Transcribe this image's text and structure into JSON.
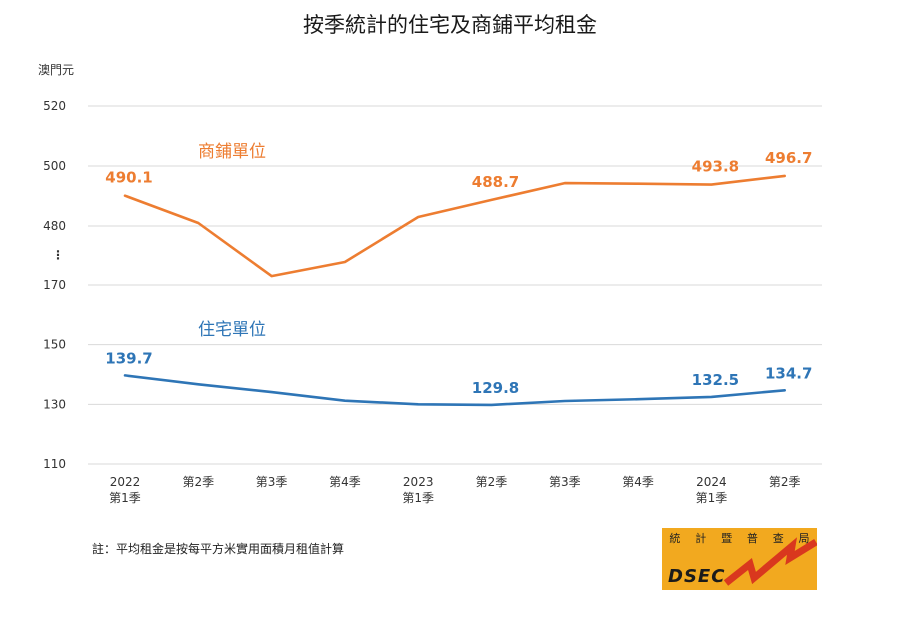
{
  "chart_data": {
    "type": "line",
    "title": "按季統計的住宅及商鋪平均租金",
    "ylabel": "澳門元",
    "y_ticks_upper": [
      "520",
      "500",
      "480"
    ],
    "y_ticks_lower": [
      "170",
      "150",
      "130",
      "110"
    ],
    "axis_break_marker": "⋮",
    "ylim_upper": [
      480,
      520
    ],
    "ylim_lower": [
      110,
      170
    ],
    "categories": [
      [
        "2022",
        "第1季"
      ],
      [
        "",
        "第2季"
      ],
      [
        "",
        "第3季"
      ],
      [
        "",
        "第4季"
      ],
      [
        "2023",
        "第1季"
      ],
      [
        "",
        "第2季"
      ],
      [
        "",
        "第3季"
      ],
      [
        "",
        "第4季"
      ],
      [
        "2024",
        "第1季"
      ],
      [
        "",
        "第2季"
      ]
    ],
    "series": [
      {
        "name": "商鋪單位",
        "color": "#ed7d31",
        "values": [
          490.1,
          481.0,
          463.3,
          468.0,
          483.0,
          488.7,
          494.3,
          494.1,
          493.8,
          496.7
        ],
        "labeled_points": [
          {
            "index": 0,
            "label": "490.1"
          },
          {
            "index": 5,
            "label": "488.7"
          },
          {
            "index": 8,
            "label": "493.8"
          },
          {
            "index": 9,
            "label": "496.7"
          }
        ]
      },
      {
        "name": "住宅單位",
        "color": "#2e75b6",
        "values": [
          139.7,
          136.7,
          134.1,
          131.2,
          130.0,
          129.8,
          131.1,
          131.7,
          132.5,
          134.7
        ],
        "labeled_points": [
          {
            "index": 0,
            "label": "139.7"
          },
          {
            "index": 5,
            "label": "129.8"
          },
          {
            "index": 8,
            "label": "132.5"
          },
          {
            "index": 9,
            "label": "134.7"
          }
        ]
      }
    ]
  },
  "note": "註：平均租金是按每平方米實用面積月租值計算",
  "logo": {
    "chars": [
      "統",
      "計",
      "暨",
      "普",
      "查",
      "局"
    ],
    "letters": "DSEC",
    "accent_color": "#d9381e"
  }
}
